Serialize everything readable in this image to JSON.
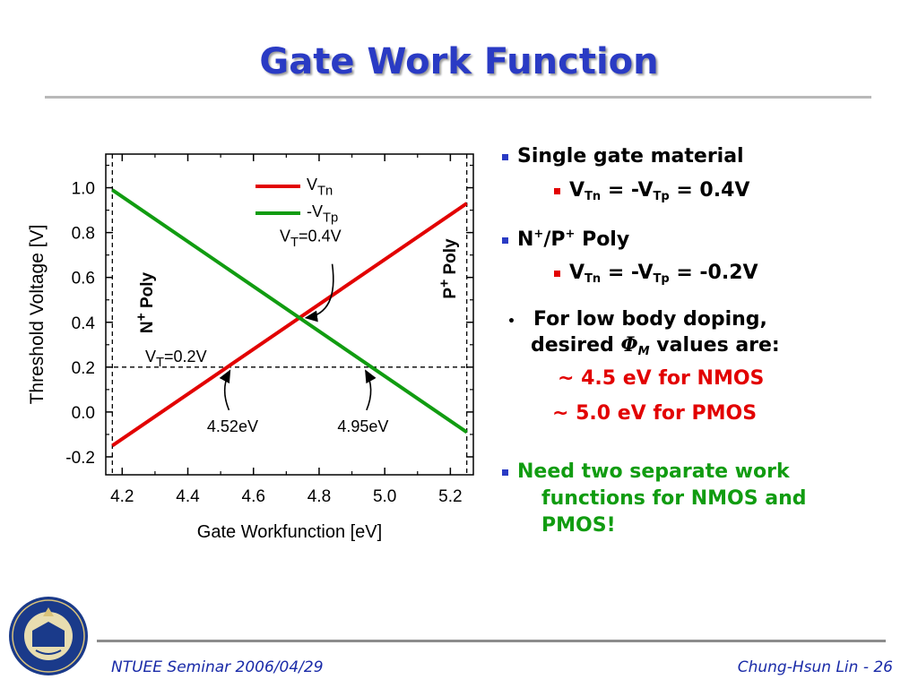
{
  "slide": {
    "title": "Gate Work Function",
    "footer_left": "NTUEE Seminar 2006/04/29",
    "footer_right": "Chung-Hsun Lin - 26",
    "seal_text": "THE UNIVERSITY OF CALIFORNIA BERKELEY 1868"
  },
  "bullets": {
    "b1": "Single gate material",
    "b1_sub": {
      "v1": "V",
      "s1": "Tn",
      "mid": " = -V",
      "s2": "Tp",
      "end": " = 0.4V"
    },
    "b2": {
      "n": "N",
      "p1": "+",
      "slash": "/P",
      "p2": "+",
      "rest": " Poly"
    },
    "b2_sub": {
      "v1": "V",
      "s1": "Tn",
      "mid": " = -V",
      "s2": "Tp",
      "end": " = -0.2V"
    },
    "b3_line1": "For low body doping,",
    "b3_line2_a": "desired ",
    "b3_phi": "Φ",
    "b3_phi_sub": "M",
    "b3_line2_b": " values are:",
    "b3_nmos": "~ 4.5 eV for NMOS",
    "b3_pmos": "~ 5.0 eV for PMOS",
    "b4_line1": "Need two separate work",
    "b4_line2": "functions for NMOS and",
    "b4_line3": "PMOS!"
  },
  "colors": {
    "title": "#2a3bc4",
    "red": "#e20000",
    "green": "#119c11",
    "footer": "#1a2ba8"
  },
  "chart_data": {
    "type": "line",
    "xlabel": "Gate Workfunction [eV]",
    "ylabel": "Threshold Voltage [V]",
    "xlim": [
      4.15,
      5.27
    ],
    "ylim": [
      -0.28,
      1.15
    ],
    "xticks": [
      4.2,
      4.4,
      4.6,
      4.8,
      5.0,
      5.2
    ],
    "xtick_labels": [
      "4.2",
      "4.4",
      "4.6",
      "4.8",
      "5.0",
      "5.2"
    ],
    "yticks": [
      -0.2,
      0.0,
      0.2,
      0.4,
      0.6,
      0.8,
      1.0
    ],
    "ytick_labels": [
      "-0.2",
      "0.0",
      "0.2",
      "0.4",
      "0.6",
      "0.8",
      "1.0"
    ],
    "series": [
      {
        "name": "V",
        "name_sub": "Tn",
        "color": "#e20000",
        "x": [
          4.17,
          5.25
        ],
        "y": [
          -0.15,
          0.93
        ]
      },
      {
        "name": "-V",
        "name_sub": "Tp",
        "color": "#119c11",
        "x": [
          4.17,
          5.25
        ],
        "y": [
          0.99,
          -0.09
        ]
      }
    ],
    "grid": false,
    "legend": "top-center",
    "reference_lines": {
      "vertical": [
        4.17,
        5.25
      ],
      "horizontal": {
        "y": 0.2,
        "label_v": "V",
        "label_sub": "T",
        "label_rest": "=0.2V"
      }
    },
    "annotations": [
      {
        "text": "4.52eV",
        "x": 4.52,
        "y": 0.2
      },
      {
        "text": "4.95eV",
        "x": 4.95,
        "y": 0.2
      },
      {
        "label_v": "V",
        "label_sub": "T",
        "label_rest": "=0.4V",
        "x": 4.74,
        "y": 0.42
      }
    ],
    "side_labels": {
      "left": {
        "base": "N",
        "sup": "+",
        "rest": " Poly"
      },
      "right": {
        "base": "P",
        "sup": "+",
        "rest": " Poly"
      }
    }
  }
}
